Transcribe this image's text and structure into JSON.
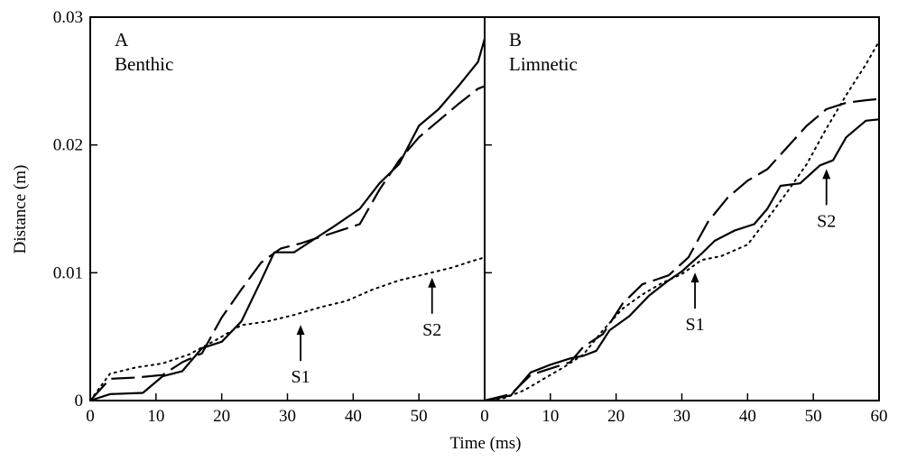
{
  "chart_data": {
    "type": "line",
    "xlabel": "Time (ms)",
    "ylabel": "Distance (m)",
    "y_ticks": [
      "0",
      "0.01",
      "0.02",
      "0.03"
    ],
    "ylim": [
      0,
      0.03
    ],
    "grid": false,
    "panels": [
      {
        "letter": "A",
        "subtitle": "Benthic",
        "xlim": [
          0,
          60
        ],
        "x_ticks": [
          "0",
          "10",
          "20",
          "30",
          "40",
          "50"
        ],
        "series": [
          {
            "style": "solid",
            "x": [
              0,
              3,
              8,
              11,
              14,
              17,
              20,
              23,
              26,
              28,
              31,
              34,
              37,
              41,
              44,
              47,
              50,
              53,
              56,
              59,
              60
            ],
            "y": [
              0,
              0.0005,
              0.0006,
              0.0019,
              0.0023,
              0.0041,
              0.0046,
              0.0062,
              0.0094,
              0.0116,
              0.0116,
              0.0126,
              0.0136,
              0.015,
              0.017,
              0.0185,
              0.0215,
              0.0228,
              0.0246,
              0.0265,
              0.0283
            ]
          },
          {
            "style": "dashed",
            "x": [
              0,
              3,
              7,
              11,
              14,
              17,
              20,
              23,
              26,
              29,
              32,
              35,
              38,
              41,
              44,
              47,
              50,
              53,
              56,
              59,
              60
            ],
            "y": [
              0,
              0.0017,
              0.0018,
              0.002,
              0.003,
              0.0037,
              0.0065,
              0.0087,
              0.0108,
              0.0119,
              0.0123,
              0.0128,
              0.0133,
              0.0138,
              0.0165,
              0.0188,
              0.0206,
              0.0219,
              0.0232,
              0.0244,
              0.0246
            ]
          },
          {
            "style": "dotted",
            "x": [
              0,
              3,
              7,
              11,
              15,
              19,
              23,
              27,
              31,
              35,
              39,
              43,
              47,
              51,
              55,
              58,
              60
            ],
            "y": [
              0,
              0.0021,
              0.0026,
              0.0029,
              0.0036,
              0.0047,
              0.0059,
              0.0062,
              0.0067,
              0.0073,
              0.0078,
              0.0087,
              0.0094,
              0.0099,
              0.0104,
              0.0109,
              0.0112
            ]
          }
        ],
        "annotations": [
          {
            "label": "S1",
            "x": 32,
            "y": 0.0062
          },
          {
            "label": "S2",
            "x": 52,
            "y": 0.0099
          }
        ]
      },
      {
        "letter": "B",
        "subtitle": "Limnetic",
        "xlim": [
          0,
          60
        ],
        "x_ticks": [
          "0",
          "10",
          "20",
          "30",
          "40",
          "50",
          "60"
        ],
        "series": [
          {
            "style": "solid",
            "x": [
              0,
              4,
              7,
              10,
              13,
              15,
              17,
              19,
              22,
              25,
              28,
              30,
              33,
              35,
              38,
              41,
              43,
              45,
              48,
              51,
              53,
              55,
              58,
              60
            ],
            "y": [
              0,
              0.0004,
              0.0022,
              0.0028,
              0.0033,
              0.0035,
              0.0039,
              0.0055,
              0.0066,
              0.0082,
              0.0094,
              0.0101,
              0.0115,
              0.0125,
              0.0133,
              0.0138,
              0.015,
              0.0168,
              0.017,
              0.0184,
              0.0188,
              0.0206,
              0.0219,
              0.022
            ]
          },
          {
            "style": "dashed",
            "x": [
              0,
              4,
              7,
              10,
              13,
              15,
              18,
              21,
              24,
              28,
              31,
              34,
              37,
              40,
              43,
              46,
              49,
              52,
              55,
              58,
              60
            ],
            "y": [
              0,
              0.0005,
              0.002,
              0.0025,
              0.003,
              0.0042,
              0.0052,
              0.0076,
              0.0091,
              0.0098,
              0.0112,
              0.014,
              0.0159,
              0.0172,
              0.0181,
              0.0198,
              0.0215,
              0.0228,
              0.0233,
              0.0235,
              0.0236
            ]
          },
          {
            "style": "dotted",
            "x": [
              0,
              3,
              6,
              9,
              12,
              15,
              18,
              21,
              24,
              27,
              30,
              33,
              36,
              40,
              43,
              46,
              49,
              52,
              55,
              58,
              60
            ],
            "y": [
              0,
              0.0002,
              0.0008,
              0.0017,
              0.0026,
              0.0036,
              0.0055,
              0.0072,
              0.0083,
              0.0092,
              0.0099,
              0.011,
              0.0113,
              0.0122,
              0.0142,
              0.0163,
              0.0185,
              0.0213,
              0.0239,
              0.0263,
              0.0281
            ]
          }
        ],
        "annotations": [
          {
            "label": "S1",
            "x": 32,
            "y": 0.0103
          },
          {
            "label": "S2",
            "x": 52,
            "y": 0.0184
          }
        ]
      }
    ]
  }
}
